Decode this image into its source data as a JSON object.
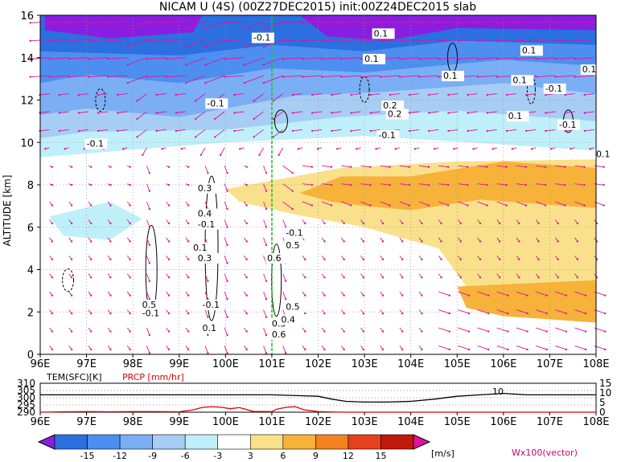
{
  "chart_data": [
    {
      "type": "heatmap",
      "title": "NICAM U (4S) (00Z27DEC2015) init:00Z24DEC2015 slab",
      "ylabel": "ALTITUDE [km]",
      "x_ticks": [
        "96E",
        "97E",
        "98E",
        "99E",
        "100E",
        "101E",
        "102E",
        "103E",
        "104E",
        "105E",
        "106E",
        "107E",
        "108E"
      ],
      "y_ticks": [
        0,
        2,
        4,
        6,
        8,
        10,
        12,
        14,
        16
      ],
      "xlim": [
        96,
        108
      ],
      "ylim": [
        0,
        16
      ],
      "contour_labels": [
        "-0.1",
        "-0.1",
        "-0.1",
        "0.1",
        "0.1",
        "0.1",
        "-0.1",
        "0.1",
        "0.1",
        "-0.1",
        "0.2",
        "0.1",
        "0.1",
        "-0.1",
        "0.1",
        "0.2",
        "0.3",
        "0.4",
        "-0.1",
        "0.1",
        "0.3",
        "-0.1",
        "0.5",
        "0.6",
        "0.5",
        "-0.1",
        "-0.1",
        "0.1",
        "0.3",
        "0.6",
        "0.5",
        "0.4"
      ],
      "reference_line_x": 101,
      "wind_arrow_note": "Wx100(vector)"
    },
    {
      "type": "line",
      "series": [
        {
          "name": "TEM(SFC)[K]",
          "color": "#000000",
          "x": [
            96,
            98,
            99.5,
            100.5,
            101,
            102,
            102.3,
            102.6,
            103,
            103.5,
            104,
            104.5,
            105,
            105.5,
            106,
            106.5,
            107,
            108
          ],
          "values": [
            302,
            302,
            302,
            302,
            302,
            301,
            299,
            297.5,
            297,
            297,
            297.5,
            299,
            301,
            302,
            303,
            302,
            302,
            302
          ]
        },
        {
          "name": "PRCP [mm/hr]",
          "color": "#e00000",
          "x": [
            96,
            96.5,
            97,
            97.5,
            98,
            98.5,
            99,
            99.3,
            99.5,
            99.7,
            99.9,
            100.1,
            100.3,
            100.6,
            101,
            101.1,
            101.3,
            101.5,
            101.7,
            102,
            102.3,
            102.6,
            103,
            104,
            105,
            106,
            107,
            108
          ],
          "values": [
            0,
            0.2,
            0.3,
            0.2,
            0.3,
            0.3,
            0.2,
            1.2,
            2.5,
            2.8,
            2.6,
            1.8,
            2.4,
            0.4,
            0.3,
            1.5,
            2.5,
            2.9,
            1.2,
            0.3,
            0.1,
            0,
            0,
            0,
            0,
            0,
            0,
            0
          ]
        }
      ],
      "left_ticks": [
        290,
        295,
        300,
        305,
        310
      ],
      "right_ticks": [
        0,
        5,
        10,
        15
      ],
      "xlim": [
        96,
        108
      ]
    }
  ],
  "colorbar": {
    "ticks": [
      "-15",
      "-12",
      "-9",
      "-6",
      "-3",
      "3",
      "6",
      "9",
      "12",
      "15"
    ],
    "unit": "[m/s]",
    "colors": [
      "#8a1ee0",
      "#2b6fe0",
      "#4d8ff0",
      "#7aaef5",
      "#a7cdf5",
      "#bfeff8",
      "#ffffff",
      "#f9e08a",
      "#f7b23a",
      "#f3821e",
      "#e6401e",
      "#c0180c",
      "#e0149c"
    ]
  },
  "text": {
    "title": "NICAM U (4S) (00Z27DEC2015) init:00Z24DEC2015 slab",
    "ylabel": "ALTITUDE [km]",
    "tem_label": "TEM(SFC)[K]",
    "prcp_label": "PRCP [mm/hr]",
    "unit": "[m/s]",
    "vector_note": "Wx100(vector)",
    "tem_peak_label": "10"
  }
}
